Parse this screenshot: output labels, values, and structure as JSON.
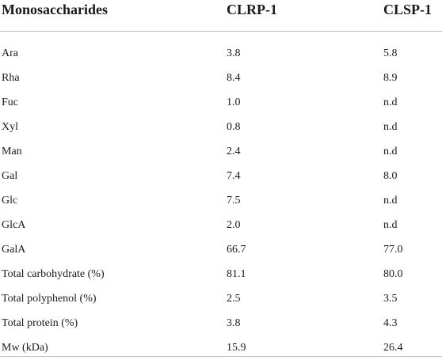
{
  "table": {
    "headers": [
      "Monosaccharides",
      "CLRP-1",
      "CLSP-1"
    ],
    "rows": [
      [
        "Ara",
        "3.8",
        "5.8"
      ],
      [
        "Rha",
        "8.4",
        "8.9"
      ],
      [
        "Fuc",
        "1.0",
        "n.d"
      ],
      [
        "Xyl",
        "0.8",
        "n.d"
      ],
      [
        "Man",
        "2.4",
        "n.d"
      ],
      [
        "Gal",
        "7.4",
        "8.0"
      ],
      [
        "Glc",
        "7.5",
        "n.d"
      ],
      [
        "GlcA",
        "2.0",
        "n.d"
      ],
      [
        "GalA",
        "66.7",
        "77.0"
      ],
      [
        "Total carbohydrate (%)",
        "81.1",
        "80.0"
      ],
      [
        "Total polyphenol (%)",
        "2.5",
        "3.5"
      ],
      [
        "Total protein (%)",
        "3.8",
        "4.3"
      ],
      [
        "Mw (kDa)",
        "15.9",
        "26.4"
      ]
    ]
  }
}
